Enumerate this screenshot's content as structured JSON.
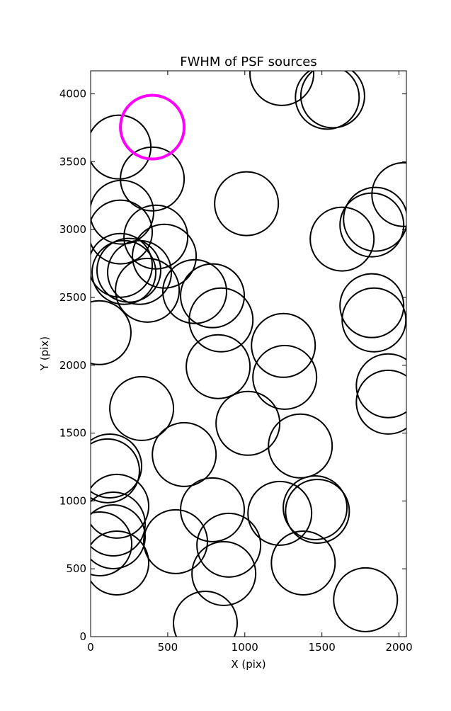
{
  "chart_data": {
    "type": "scatter",
    "title": "FWHM of PSF sources",
    "x_label": "X (pix)",
    "y_label": "Y (pix)",
    "xlim": [
      0,
      2048
    ],
    "ylim": [
      0,
      4170
    ],
    "xticks": [
      0,
      500,
      1000,
      1500,
      2000
    ],
    "yticks": [
      0,
      500,
      1000,
      1500,
      2000,
      2500,
      3000,
      3500,
      4000
    ],
    "grid": false,
    "series": [
      {
        "color": "#000000",
        "x": [
          1240,
          1535,
          1570,
          184,
          400,
          1011,
          2031,
          202,
          193,
          423,
          478,
          193,
          216,
          248,
          317,
          368,
          675,
          790,
          846,
          1631,
          1847,
          1824,
          1824,
          1838,
          55,
          827,
          1250,
          1259,
          1930,
          1930,
          331,
          1020,
          1360,
          607,
          124,
          110,
          170,
          147,
          147,
          60,
          170,
          551,
          790,
          896,
          864,
          744,
          1227,
          1456,
          1471,
          1379,
          1783
        ],
        "values": [
          4150,
          3975,
          3985,
          3608,
          3373,
          3191,
          3258,
          3128,
          2982,
          2945,
          2804,
          2736,
          2684,
          2700,
          2684,
          2553,
          2543,
          2512,
          2334,
          2930,
          3076,
          3034,
          2439,
          2334,
          2240,
          1990,
          2146,
          1911,
          1849,
          1728,
          1681,
          1572,
          1405,
          1342,
          1258,
          1222,
          961,
          830,
          736,
          684,
          543,
          700,
          935,
          674,
          465,
          99,
          909,
          950,
          924,
          543,
          272
        ]
      },
      {
        "color": "#ff00ff",
        "x": [
          400
        ],
        "values": [
          3755
        ]
      }
    ]
  }
}
